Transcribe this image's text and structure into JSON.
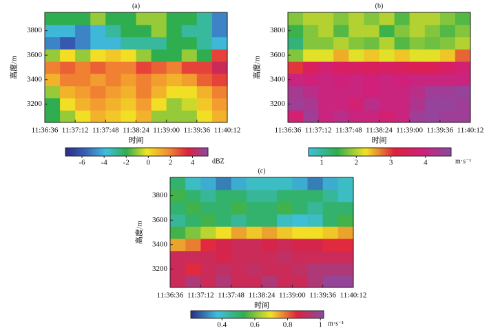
{
  "chart_data": [
    {
      "type": "heatmap",
      "title": "(a)",
      "xlabel": "时间",
      "ylabel": "高度/m",
      "xticks": [
        "11:36:36",
        "11:37:12",
        "11:37:48",
        "11:38:24",
        "11:39:00",
        "11:39:36",
        "11:40:12"
      ],
      "ylim": [
        3050,
        3950
      ],
      "yticks": [
        3200,
        3400,
        3600,
        3800
      ],
      "y": [
        3100,
        3200,
        3300,
        3400,
        3500,
        3600,
        3700,
        3800,
        3900
      ],
      "z": [
        [
          -2,
          -1,
          0,
          1,
          0.5,
          0,
          1,
          -1,
          -1,
          -1,
          0,
          1
        ],
        [
          -2,
          0,
          1,
          1.5,
          1,
          0.5,
          1.5,
          0,
          -1,
          -0.5,
          0.5,
          1.5
        ],
        [
          -1,
          1,
          1.5,
          2,
          1.5,
          1,
          2,
          1,
          0,
          0,
          1,
          2
        ],
        [
          1,
          2,
          2,
          1.5,
          2,
          1.5,
          2,
          1.5,
          1,
          1.5,
          2.5,
          3
        ],
        [
          2,
          2.5,
          2,
          2.5,
          2,
          2,
          3,
          2.5,
          2,
          3,
          3,
          4
        ],
        [
          -1,
          0,
          -1,
          0,
          0.5,
          0,
          -1,
          -2,
          -2,
          -1,
          -2,
          3
        ],
        [
          -5,
          -6,
          -5,
          -4,
          -4,
          -3,
          -3,
          -3,
          -2,
          -2,
          -3,
          -4
        ],
        [
          -4,
          -4,
          -5,
          -4,
          -3,
          -2,
          -2,
          -1,
          -2,
          -3,
          -3,
          -5
        ],
        [
          -2,
          -2,
          -2,
          -1,
          -2,
          -2,
          -1,
          -1,
          -2,
          -2,
          -3,
          -5
        ]
      ],
      "colorbar": {
        "lim": [
          -7.5,
          5.4
        ],
        "ticks": [
          -6,
          -4,
          -2,
          0,
          2,
          4
        ],
        "unit": "dBZ",
        "colors": [
          "#2a2c86",
          "#3a62b8",
          "#3fc0dc",
          "#2fae4e",
          "#f2e424",
          "#f39230",
          "#e0203e",
          "#8a4aa2"
        ]
      }
    },
    {
      "type": "heatmap",
      "title": "(b)",
      "xlabel": "时间",
      "ylabel": "高度/m",
      "xticks": [
        "11:36:36",
        "11:37:12",
        "11:37:48",
        "11:38:24",
        "11:39:00",
        "11:39:36",
        "11:40:12"
      ],
      "ylim": [
        3050,
        3950
      ],
      "yticks": [
        3200,
        3400,
        3600,
        3800
      ],
      "y": [
        3100,
        3200,
        3300,
        3400,
        3500,
        3600,
        3700,
        3800,
        3900
      ],
      "z": [
        [
          3.8,
          4.5,
          4.0,
          4.2,
          4.0,
          4.0,
          3.8,
          4.0,
          4.5,
          4.6,
          4.5,
          4.5
        ],
        [
          4.5,
          4.4,
          4.0,
          4.0,
          3.8,
          4.2,
          4.0,
          4.0,
          4.3,
          4.6,
          4.6,
          4.5
        ],
        [
          4.4,
          4.2,
          4.0,
          4.0,
          4.0,
          3.9,
          4.0,
          4.0,
          4.2,
          4.5,
          4.5,
          4.6
        ],
        [
          4.0,
          3.9,
          4.0,
          3.9,
          4.0,
          3.9,
          4.0,
          3.9,
          4.0,
          4.0,
          4.0,
          4.0
        ],
        [
          3.0,
          3.5,
          3.8,
          3.6,
          3.6,
          3.5,
          3.6,
          3.5,
          3.4,
          3.4,
          3.6,
          3.8
        ],
        [
          1.8,
          2.2,
          2.2,
          2.5,
          2.2,
          2.4,
          2.2,
          2.4,
          2.2,
          2.2,
          2.4,
          2.8
        ],
        [
          1.2,
          1.8,
          1.8,
          2.0,
          1.8,
          1.7,
          2.0,
          1.6,
          1.8,
          1.7,
          1.8,
          2.0
        ],
        [
          1.5,
          1.8,
          2.0,
          1.6,
          2.0,
          2.0,
          1.5,
          1.8,
          2.0,
          1.8,
          1.6,
          1.8
        ],
        [
          1.8,
          2.0,
          2.0,
          1.8,
          2.0,
          1.8,
          2.0,
          1.6,
          2.0,
          2.0,
          1.8,
          1.6
        ]
      ],
      "colorbar": {
        "lim": [
          0.62,
          4.74
        ],
        "ticks": [
          1,
          2,
          3,
          4
        ],
        "unit": "m·s⁻¹",
        "colors": [
          "#3fc0dc",
          "#2fae4e",
          "#f2e424",
          "#e0203e",
          "#d0207a",
          "#8a4aa2"
        ]
      }
    },
    {
      "type": "heatmap",
      "title": "(c)",
      "xlabel": "时间",
      "ylabel": "高度/m",
      "xticks": [
        "11:36:36",
        "11:37:12",
        "11:37:48",
        "11:38:24",
        "11:39:00",
        "11:39:36",
        "11:40:12"
      ],
      "ylim": [
        3050,
        3950
      ],
      "yticks": [
        3200,
        3400,
        3600,
        3800
      ],
      "y": [
        3100,
        3200,
        3300,
        3400,
        3500,
        3600,
        3700,
        3800,
        3900
      ],
      "z": [
        [
          0.9,
          0.95,
          0.9,
          0.95,
          0.9,
          0.9,
          0.95,
          0.9,
          0.9,
          0.95,
          1.0,
          1.0
        ],
        [
          0.9,
          0.85,
          0.9,
          0.92,
          0.9,
          0.92,
          0.9,
          0.9,
          0.92,
          0.95,
          0.95,
          0.95
        ],
        [
          0.9,
          0.9,
          0.9,
          0.88,
          0.9,
          0.9,
          0.9,
          0.92,
          0.9,
          0.9,
          0.9,
          0.9
        ],
        [
          0.75,
          0.78,
          0.85,
          0.88,
          0.9,
          0.9,
          0.88,
          0.9,
          0.88,
          0.88,
          0.85,
          0.85
        ],
        [
          0.55,
          0.6,
          0.65,
          0.7,
          0.75,
          0.72,
          0.75,
          0.72,
          0.7,
          0.7,
          0.72,
          0.75
        ],
        [
          0.45,
          0.5,
          0.55,
          0.5,
          0.45,
          0.5,
          0.5,
          0.4,
          0.38,
          0.4,
          0.5,
          0.55
        ],
        [
          0.5,
          0.55,
          0.5,
          0.5,
          0.55,
          0.5,
          0.5,
          0.55,
          0.5,
          0.45,
          0.5,
          0.5
        ],
        [
          0.55,
          0.5,
          0.45,
          0.5,
          0.5,
          0.45,
          0.45,
          0.5,
          0.5,
          0.5,
          0.45,
          0.4
        ],
        [
          0.5,
          0.4,
          0.35,
          0.3,
          0.35,
          0.4,
          0.4,
          0.4,
          0.35,
          0.3,
          0.35,
          0.4
        ]
      ],
      "colorbar": {
        "lim": [
          0.21,
          1.02
        ],
        "ticks": [
          0.4,
          0.6,
          0.8,
          1.0
        ],
        "unit": "m·s⁻¹",
        "colors": [
          "#2a2c86",
          "#3fc0dc",
          "#2fae4e",
          "#f2e424",
          "#e0203e",
          "#8a4aa2"
        ]
      }
    }
  ]
}
